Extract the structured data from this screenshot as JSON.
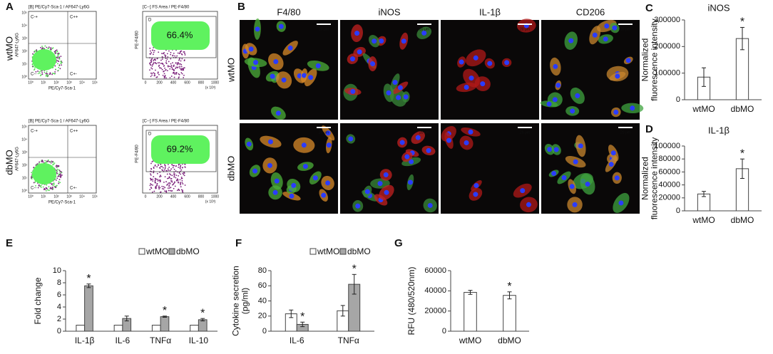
{
  "panel_labels": [
    "A",
    "B",
    "C",
    "D",
    "E",
    "F",
    "G"
  ],
  "flow": {
    "rows": [
      "wtMO",
      "dbMO"
    ],
    "left_header": "[B] PE/Cy7-Sca-1 / AF647-Ly6G",
    "right_header": "[C--] FS Area / PE-F4/80",
    "left_gates": [
      "C-+",
      "C++",
      "C--",
      "C+-"
    ],
    "right_gate": "D",
    "left_ylabel": "AF647-Ly6G",
    "left_xlabel": "PE/Cy7-Sca-1",
    "right_ylabel": "PE-F4/80",
    "log_ticks": [
      "10⁰",
      "10¹",
      "10²",
      "10³",
      "10⁴",
      "10⁵"
    ],
    "fs_ticks": [
      "0",
      "200",
      "400",
      "600",
      "800",
      "1000"
    ],
    "fs_unit": "(x 10³)",
    "percentages": [
      "66.4%",
      "69.2%"
    ]
  },
  "microscopy": {
    "columns": [
      "F4/80",
      "iNOS",
      "IL-1β",
      "CD206"
    ],
    "rows": [
      "wtMO",
      "dbMO"
    ],
    "scale_bar": "20 μm"
  },
  "chart_data": [
    {
      "type": "bar",
      "title": "iNOS",
      "ylabel": [
        "Normalized",
        "fluorescence intensity"
      ],
      "categories": [
        "wtMO",
        "dbMO"
      ],
      "values": [
        85000,
        230000
      ],
      "errors": [
        35000,
        42000
      ],
      "stars": [
        null,
        "*"
      ],
      "color": "#ffffff",
      "ylim": [
        0,
        300000
      ],
      "yticks": [
        0,
        100000,
        200000,
        300000
      ]
    },
    {
      "type": "bar",
      "title": "IL-1β",
      "ylabel": [
        "Normalized",
        "fluorescence intensity"
      ],
      "categories": [
        "wtMO",
        "dbMO"
      ],
      "values": [
        26000,
        65000
      ],
      "errors": [
        4000,
        15000
      ],
      "stars": [
        null,
        "*"
      ],
      "color": "#ffffff",
      "ylim": [
        0,
        100000
      ],
      "yticks": [
        0,
        20000,
        40000,
        60000,
        80000,
        100000
      ]
    },
    {
      "type": "bar",
      "ylabel": [
        "Fold change"
      ],
      "categories": [
        "IL-1β",
        "IL-6",
        "TNFα",
        "IL-10"
      ],
      "series": [
        {
          "name": "wtMO",
          "color": "#ffffff",
          "values": [
            1,
            1,
            1,
            1
          ],
          "errors": [
            0,
            0,
            0,
            0
          ],
          "stars": [
            null,
            null,
            null,
            null
          ]
        },
        {
          "name": "dbMO",
          "color": "#a6a6a6",
          "values": [
            7.5,
            2.1,
            2.4,
            1.9
          ],
          "errors": [
            0.3,
            0.4,
            0.1,
            0.2
          ],
          "stars": [
            "*",
            null,
            "*",
            "*"
          ]
        }
      ],
      "ylim": [
        0,
        10
      ],
      "yticks": [
        0,
        2,
        4,
        6,
        8,
        10
      ]
    },
    {
      "type": "bar",
      "ylabel": [
        "Cytokine secretion",
        "(pg/ml)"
      ],
      "categories": [
        "IL-6",
        "TNFα"
      ],
      "series": [
        {
          "name": "wtMO",
          "color": "#ffffff",
          "values": [
            23,
            27
          ],
          "errors": [
            5,
            7
          ],
          "stars": [
            null,
            null
          ]
        },
        {
          "name": "dbMO",
          "color": "#a6a6a6",
          "values": [
            9,
            62
          ],
          "errors": [
            3,
            13
          ],
          "stars": [
            "*",
            "*"
          ]
        }
      ],
      "ylim": [
        0,
        80
      ],
      "yticks": [
        0,
        20,
        40,
        60,
        80
      ]
    },
    {
      "type": "bar",
      "ylabel": [
        "RFU (480/520nm)"
      ],
      "categories": [
        "wtMO",
        "dbMO"
      ],
      "values": [
        38500,
        35500
      ],
      "errors": [
        2000,
        3500
      ],
      "stars": [
        null,
        "*"
      ],
      "color": "#ffffff",
      "ylim": [
        0,
        60000
      ],
      "yticks": [
        0,
        20000,
        40000,
        60000
      ]
    }
  ]
}
